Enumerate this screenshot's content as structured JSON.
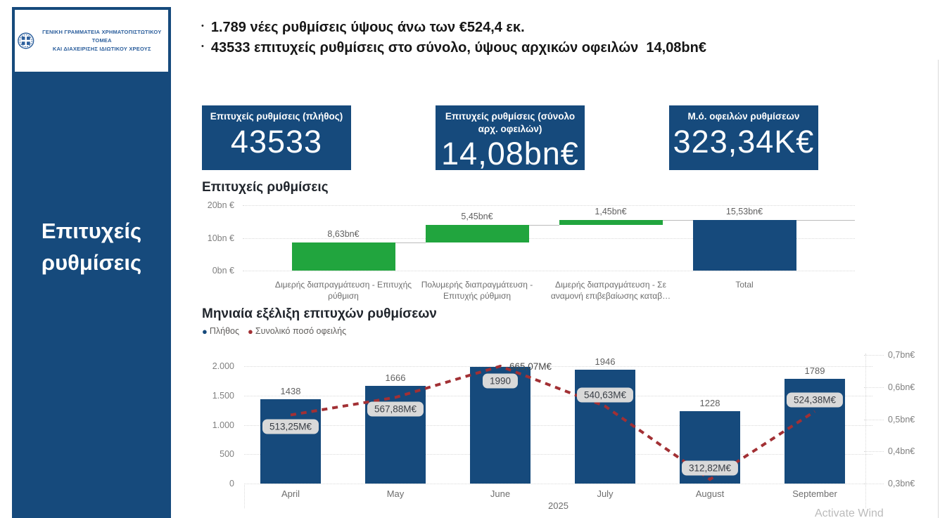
{
  "sidebar": {
    "logo_line1": "ΓΕΝΙΚΗ ΓΡΑΜΜΑΤΕΙΑ ΧΡΗΜΑΤΟΠΙΣΤΩΤΙΚΟΥ ΤΟΜΕΑ",
    "logo_line2": "ΚΑΙ ΔΙΑΧΕΙΡΙΣΗΣ ΙΔΙΩΤΙΚΟΥ ΧΡΕΟΥΣ",
    "title": "Επιτυχείς ρυθμίσεις"
  },
  "header": {
    "bullets": [
      "1.789 νέες ρυθμίσεις ύψους άνω των €524,4 εκ.",
      "43533 επιτυχείς ρυθμίσεις στο σύνολο, ύψους αρχικών οφειλών  14,08bn€"
    ]
  },
  "kpis": [
    {
      "label": "Επιτυχείς ρυθμίσεις (πλήθος)",
      "value": "43533"
    },
    {
      "label": "Επιτυχείς ρυθμίσεις (σύνολο αρχ. οφειλών)",
      "value": "14,08bn€"
    },
    {
      "label": "Μ.ό. οφειλών ρυθμίσεων",
      "value": "323,34Κ€"
    }
  ],
  "chart_data": [
    {
      "type": "waterfall",
      "title": "Επιτυχείς ρυθμίσεις",
      "categories": [
        "Διμερής διαπραγμάτευση - Επιτυχής ρύθμιση",
        "Πολυμερής διαπραγμάτευση - Επιτυχής ρύθμιση",
        "Διμερής διαπραγμάτευση - Σε αναμονή επιβεβαίωσης καταβ…",
        "Total"
      ],
      "values_bn": [
        8.63,
        5.45,
        1.45,
        15.53
      ],
      "labels": [
        "8,63bn€",
        "5,45bn€",
        "1,45bn€",
        "15,53bn€"
      ],
      "is_total": [
        false,
        false,
        false,
        true
      ],
      "y_ticks": [
        "0bn €",
        "10bn €",
        "20bn €"
      ],
      "y_tick_values": [
        0,
        10,
        20
      ],
      "ylim": [
        0,
        20
      ],
      "grid": "dotted"
    },
    {
      "type": "bar+line",
      "title": "Μηνιαία εξέλιξη επιτυχών ρυθμίσεων",
      "legend": [
        {
          "name": "Πλήθος",
          "color": "#164A7C"
        },
        {
          "name": "Συνολικό ποσό οφειλής",
          "color": "#A23034"
        }
      ],
      "categories": [
        "April",
        "May",
        "June",
        "July",
        "August",
        "September"
      ],
      "x_group_label": "2025",
      "bar_series": {
        "name": "Πλήθος",
        "values": [
          1438,
          1666,
          1990,
          1946,
          1228,
          1789
        ]
      },
      "line_series": {
        "name": "Συνολικό ποσό οφειλής",
        "values_m": [
          513.25,
          567.88,
          665.07,
          540.63,
          312.82,
          524.38
        ],
        "labels": [
          "513,25M€",
          "567,88M€",
          "665,07M€",
          "540,63M€",
          "312,82M€",
          "524,38M€"
        ]
      },
      "left_ticks": [
        "0",
        "500",
        "1.000",
        "1.500",
        "2.000"
      ],
      "left_tick_values": [
        0,
        500,
        1000,
        1500,
        2000
      ],
      "left_lim": [
        0,
        2000
      ],
      "right_ticks": [
        "0,3bn€",
        "0,4bn€",
        "0,5bn€",
        "0,6bn€",
        "0,7bn€"
      ],
      "right_tick_values": [
        0.3,
        0.4,
        0.5,
        0.6,
        0.7
      ],
      "right_lim_bn": [
        0.3,
        0.7
      ],
      "legend_position": "top-left"
    }
  ],
  "colors": {
    "dark_blue": "#164A7C",
    "green": "#21A53E",
    "red": "#A23034",
    "label_box_bg": "#D9D9D9",
    "label_box_text": "#3A3F46",
    "axis_text": "#808080",
    "grid": "#DADADA",
    "connector": "#BBBBBB",
    "title_text": "#21262D",
    "watermark": "#ABABAB"
  },
  "watermark": "Activate Wind"
}
